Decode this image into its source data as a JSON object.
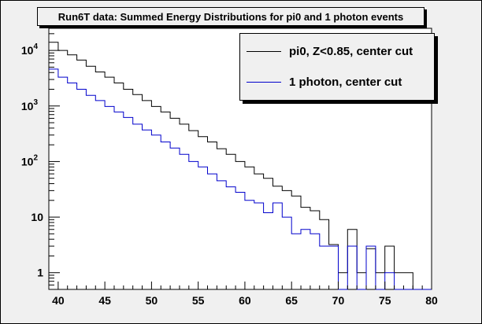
{
  "chart_data": {
    "type": "line",
    "title": "Run6T data: Summed Energy Distributions for pi0 and 1 photon events",
    "xlabel": "",
    "ylabel": "",
    "xlim": [
      39,
      80
    ],
    "ylim": [
      0.5,
      25000
    ],
    "yscale": "log",
    "x_ticks": [
      40,
      45,
      50,
      55,
      60,
      65,
      70,
      75,
      80
    ],
    "x_tick_labels": [
      "40",
      "45",
      "50",
      "55",
      "60",
      "65",
      "70",
      "75",
      "80"
    ],
    "y_ticks": [
      1,
      10,
      100,
      1000,
      10000
    ],
    "y_tick_labels": [
      {
        "base": "1",
        "exp": ""
      },
      {
        "base": "10",
        "exp": ""
      },
      {
        "base": "10",
        "exp": "2"
      },
      {
        "base": "10",
        "exp": "3"
      },
      {
        "base": "10",
        "exp": "4"
      }
    ],
    "legend_position": "top-right",
    "bin_edges": [
      39,
      40,
      41,
      42,
      43,
      44,
      45,
      46,
      47,
      48,
      49,
      50,
      51,
      52,
      53,
      54,
      55,
      56,
      57,
      58,
      59,
      60,
      61,
      62,
      63,
      64,
      65,
      66,
      67,
      68,
      69,
      70,
      71,
      72,
      73,
      74,
      75,
      76,
      77,
      78,
      79,
      80
    ],
    "series": [
      {
        "name": "pi0, Z<0.85, center cut",
        "color": "#000000",
        "values": [
          14000,
          10000,
          8300,
          6700,
          5200,
          4100,
          3300,
          2600,
          2000,
          1600,
          1250,
          980,
          780,
          600,
          470,
          360,
          280,
          225,
          170,
          135,
          100,
          80,
          60,
          50,
          36,
          30,
          24,
          15,
          13,
          9,
          3.2,
          1,
          6,
          1,
          2.7,
          1,
          3,
          1,
          1,
          0,
          0
        ]
      },
      {
        "name": "1 photon, center cut",
        "color": "#0000cc",
        "values": [
          4600,
          3300,
          2600,
          2000,
          1550,
          1250,
          980,
          780,
          620,
          470,
          370,
          300,
          225,
          175,
          135,
          100,
          80,
          60,
          45,
          35,
          28,
          20,
          18,
          12,
          18,
          10,
          5,
          6,
          5,
          3,
          3,
          0,
          3,
          0,
          3,
          0,
          1,
          0,
          0,
          0,
          0
        ]
      }
    ]
  }
}
